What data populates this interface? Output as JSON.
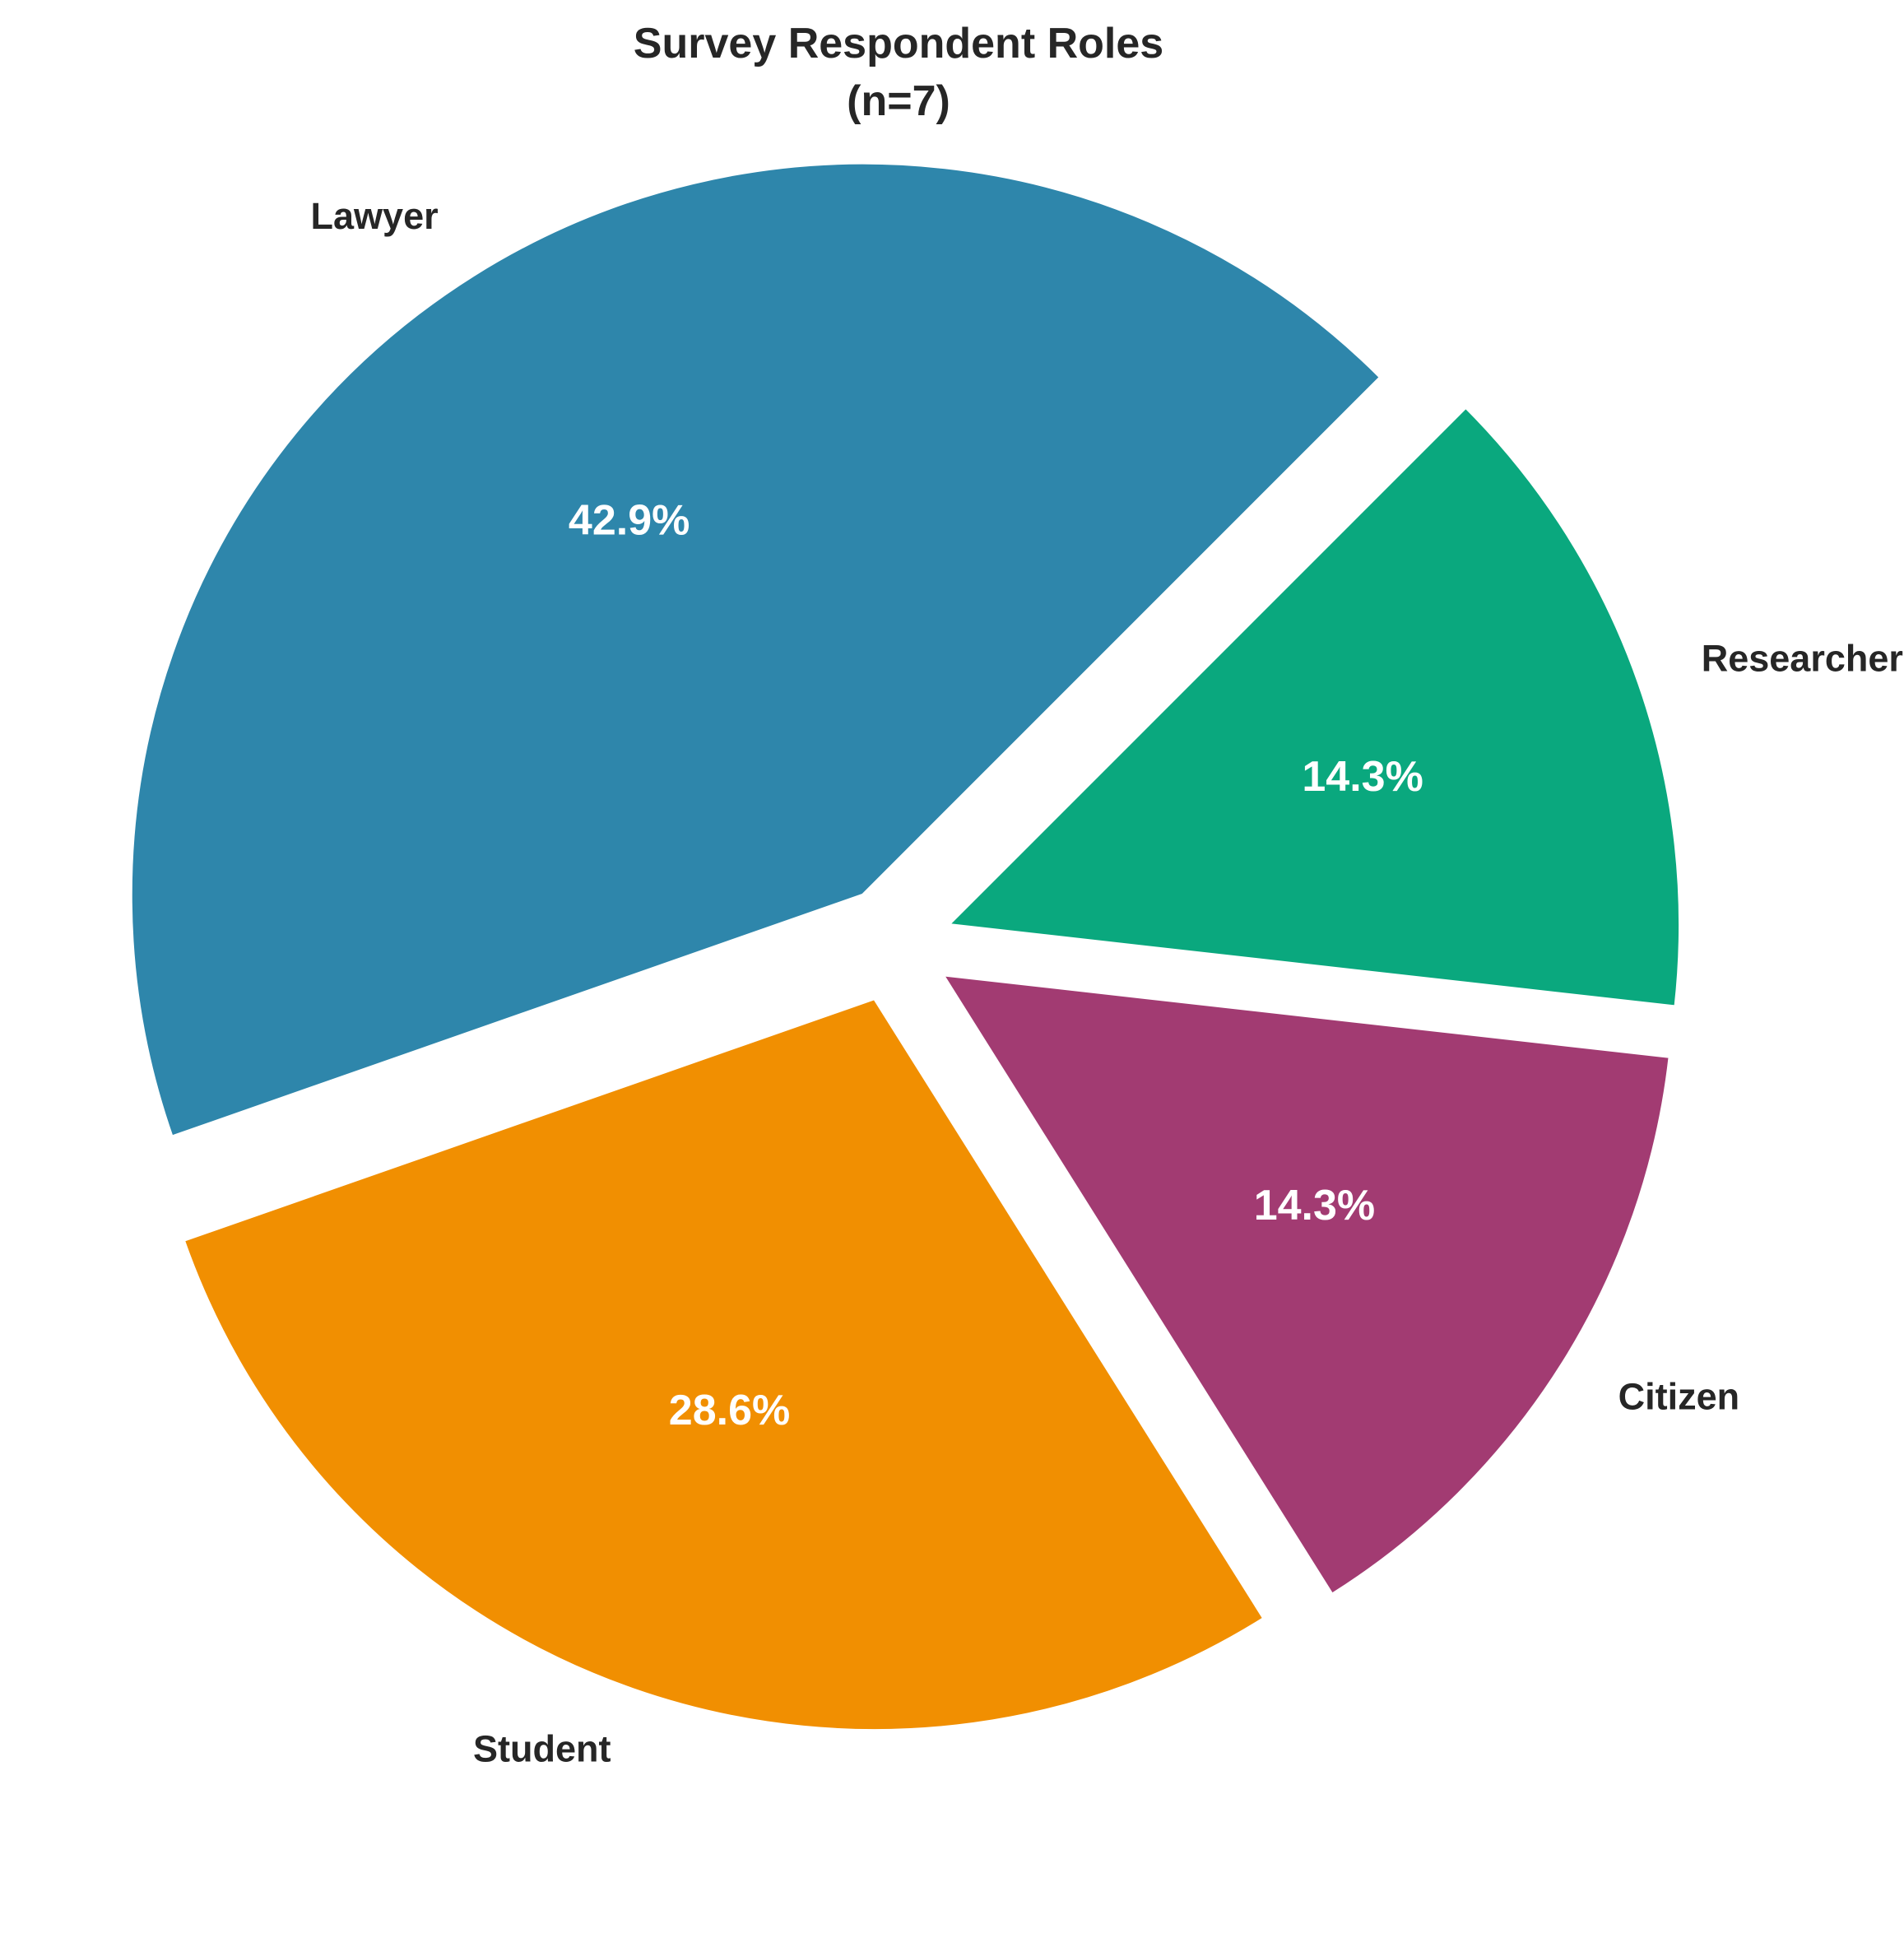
{
  "chart_data": {
    "type": "pie",
    "title": "Survey Respondent Roles",
    "subtitle": "(n=7)",
    "categories": [
      "Lawyer",
      "Student",
      "Citizen",
      "Researcher"
    ],
    "values": [
      3,
      2,
      1,
      1
    ],
    "percent_labels": [
      "42.9%",
      "28.6%",
      "14.3%",
      "14.3%"
    ],
    "colors": [
      "#2E86AB",
      "#F18F01",
      "#A23B72",
      "#0AA87E"
    ],
    "start_angle_deg": 45,
    "direction": "counterclockwise",
    "exploded": true,
    "legend": "none"
  }
}
